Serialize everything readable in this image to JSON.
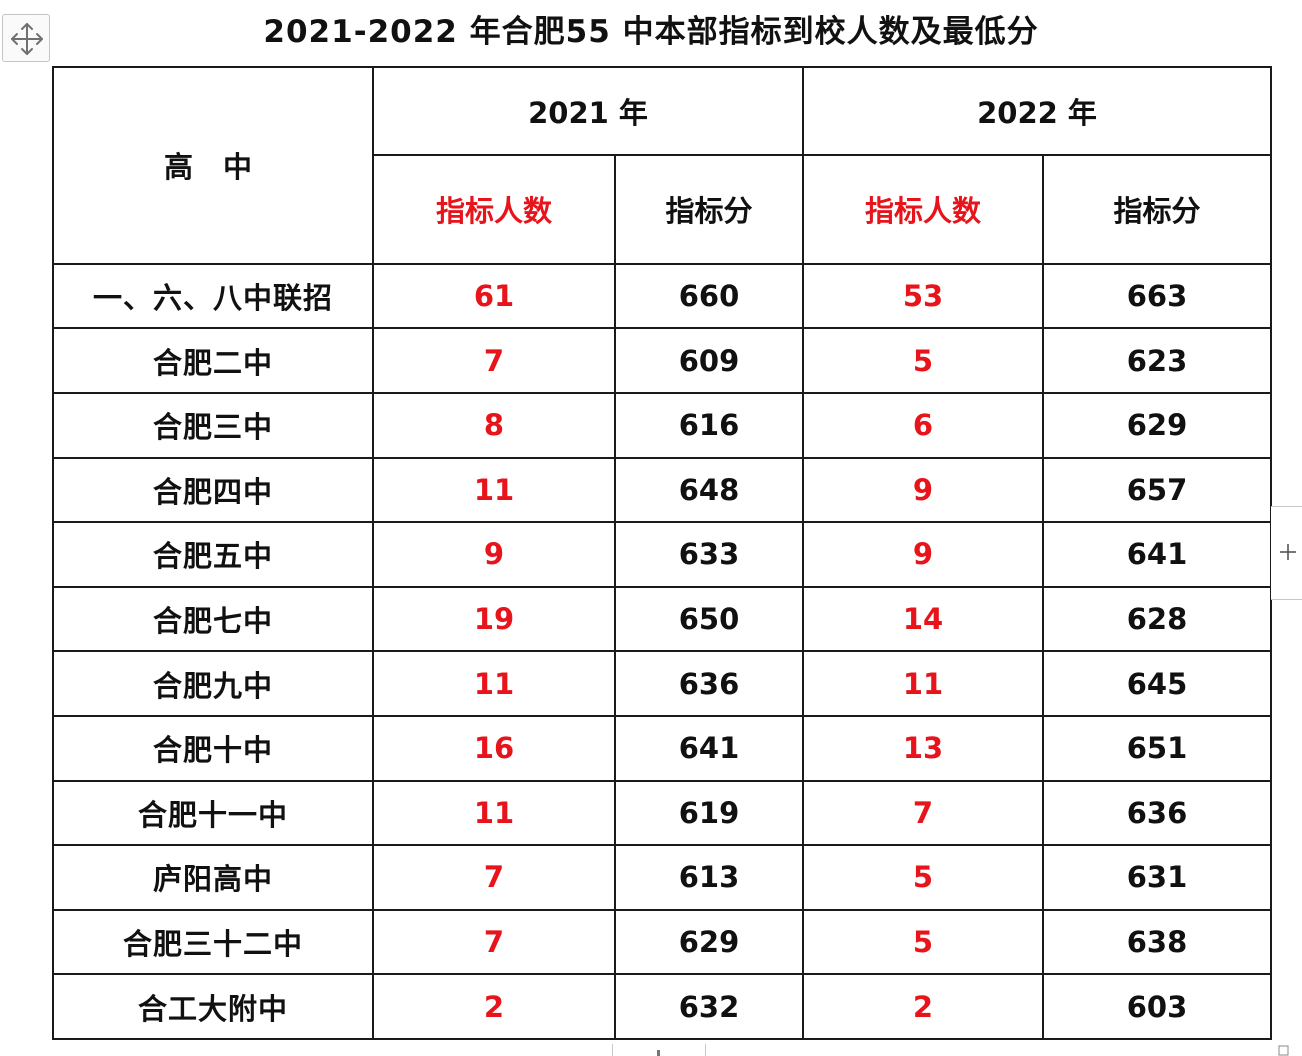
{
  "title": "2021-2022 年合肥55 中本部指标到校人数及最低分",
  "header": {
    "school_col": "高 中",
    "year_2021": "2021 年",
    "year_2022": "2022 年",
    "quota_label": "指标人数",
    "score_label": "指标分"
  },
  "rows": [
    {
      "school": "一、六、八中联招",
      "q2021": "61",
      "s2021": "660",
      "q2022": "53",
      "s2022": "663"
    },
    {
      "school": "合肥二中",
      "q2021": "7",
      "s2021": "609",
      "q2022": "5",
      "s2022": "623"
    },
    {
      "school": "合肥三中",
      "q2021": "8",
      "s2021": "616",
      "q2022": "6",
      "s2022": "629"
    },
    {
      "school": "合肥四中",
      "q2021": "11",
      "s2021": "648",
      "q2022": "9",
      "s2022": "657"
    },
    {
      "school": "合肥五中",
      "q2021": "9",
      "s2021": "633",
      "q2022": "9",
      "s2022": "641"
    },
    {
      "school": "合肥七中",
      "q2021": "19",
      "s2021": "650",
      "q2022": "14",
      "s2022": "628"
    },
    {
      "school": "合肥九中",
      "q2021": "11",
      "s2021": "636",
      "q2022": "11",
      "s2022": "645"
    },
    {
      "school": "合肥十中",
      "q2021": "16",
      "s2021": "641",
      "q2022": "13",
      "s2022": "651"
    },
    {
      "school": "合肥十一中",
      "q2021": "11",
      "s2021": "619",
      "q2022": "7",
      "s2022": "636"
    },
    {
      "school": "庐阳高中",
      "q2021": "7",
      "s2021": "613",
      "q2022": "5",
      "s2022": "631"
    },
    {
      "school": "合肥三十二中",
      "q2021": "7",
      "s2021": "629",
      "q2022": "5",
      "s2022": "638"
    },
    {
      "school": "合工大附中",
      "q2021": "2",
      "s2021": "632",
      "q2022": "2",
      "s2022": "603"
    }
  ],
  "colors": {
    "quota_text": "#e8141b",
    "score_text": "#111111",
    "border": "#1a1a1a"
  },
  "icons": {
    "table_move": "move-arrows-icon",
    "add_column": "plus-icon"
  }
}
